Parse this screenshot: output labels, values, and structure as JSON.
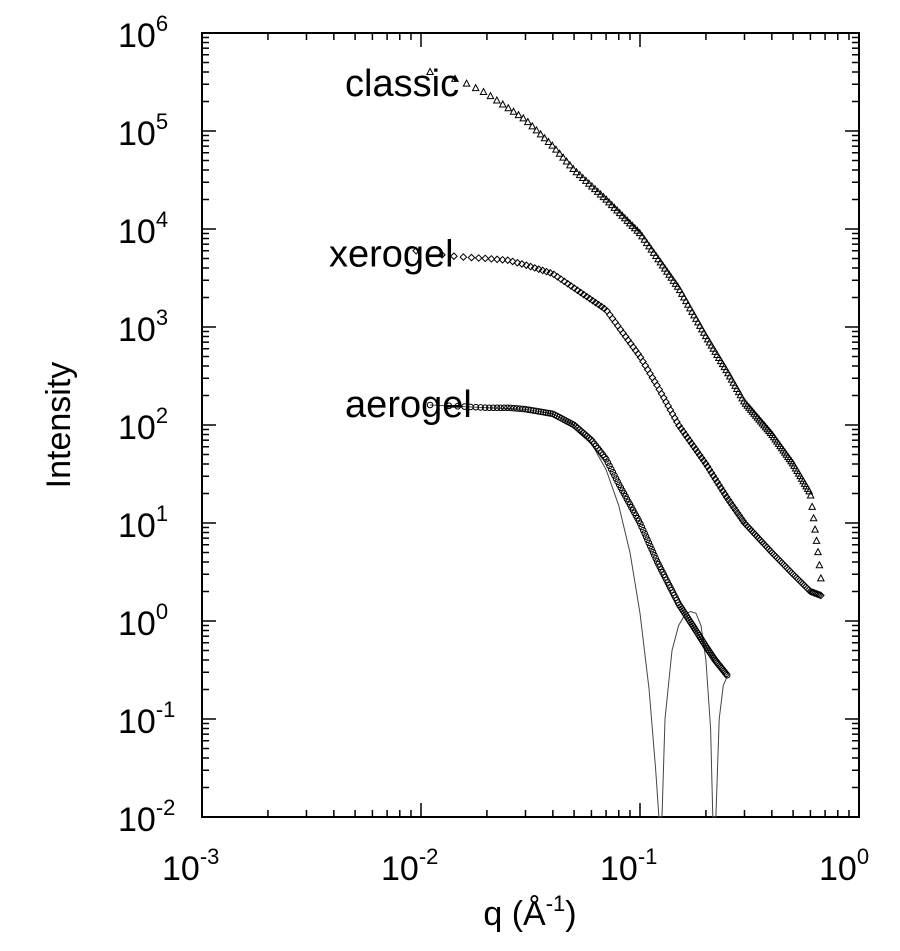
{
  "chart_data": {
    "type": "scatter",
    "x_scale": "log",
    "y_scale": "log",
    "xlim": [
      0.001,
      1
    ],
    "ylim": [
      0.01,
      1000000
    ],
    "xlabel": {
      "base": "q (Å",
      "sup": "-1",
      "tail": ")"
    },
    "ylabel": "Intensity",
    "x_ticks": [
      {
        "value": 0.001,
        "base": "10",
        "exp": "-3"
      },
      {
        "value": 0.01,
        "base": "10",
        "exp": "-2"
      },
      {
        "value": 0.1,
        "base": "10",
        "exp": "-1"
      },
      {
        "value": 1,
        "base": "10",
        "exp": "0"
      }
    ],
    "y_ticks": [
      {
        "value": 0.01,
        "base": "10",
        "exp": "-2"
      },
      {
        "value": 0.1,
        "base": "10",
        "exp": "-1"
      },
      {
        "value": 1,
        "base": "10",
        "exp": "0"
      },
      {
        "value": 10,
        "base": "10",
        "exp": "1"
      },
      {
        "value": 100,
        "base": "10",
        "exp": "2"
      },
      {
        "value": 1000,
        "base": "10",
        "exp": "3"
      },
      {
        "value": 10000,
        "base": "10",
        "exp": "4"
      },
      {
        "value": 100000,
        "base": "10",
        "exp": "5"
      },
      {
        "value": 1000000,
        "base": "10",
        "exp": "6"
      }
    ],
    "grid": false,
    "series": [
      {
        "name": "classic",
        "marker": "triangle",
        "label_at": {
          "x": 0.0045,
          "y": 300000
        },
        "points": [
          [
            0.011,
            400000
          ],
          [
            0.015,
            330000
          ],
          [
            0.02,
            240000
          ],
          [
            0.03,
            130000
          ],
          [
            0.04,
            70000
          ],
          [
            0.05,
            40000
          ],
          [
            0.07,
            20000
          ],
          [
            0.1,
            9000
          ],
          [
            0.15,
            2500
          ],
          [
            0.2,
            800
          ],
          [
            0.25,
            350
          ],
          [
            0.3,
            170
          ],
          [
            0.4,
            80
          ],
          [
            0.5,
            40
          ],
          [
            0.6,
            20
          ],
          [
            0.65,
            5
          ],
          [
            0.68,
            2
          ]
        ]
      },
      {
        "name": "xerogel",
        "marker": "diamond",
        "label_at": {
          "x": 0.0038,
          "y": 5500
        },
        "points": [
          [
            0.0095,
            6000
          ],
          [
            0.012,
            5500
          ],
          [
            0.015,
            5200
          ],
          [
            0.02,
            5000
          ],
          [
            0.025,
            4800
          ],
          [
            0.03,
            4300
          ],
          [
            0.04,
            3500
          ],
          [
            0.05,
            2500
          ],
          [
            0.07,
            1500
          ],
          [
            0.1,
            500
          ],
          [
            0.12,
            250
          ],
          [
            0.15,
            100
          ],
          [
            0.2,
            40
          ],
          [
            0.25,
            18
          ],
          [
            0.3,
            10
          ],
          [
            0.4,
            5
          ],
          [
            0.5,
            3
          ],
          [
            0.6,
            2
          ],
          [
            0.68,
            1.8
          ]
        ]
      },
      {
        "name": "aerogel",
        "marker": "circle",
        "label_at": {
          "x": 0.0045,
          "y": 160
        },
        "points": [
          [
            0.011,
            160
          ],
          [
            0.015,
            155
          ],
          [
            0.02,
            150
          ],
          [
            0.025,
            150
          ],
          [
            0.03,
            145
          ],
          [
            0.04,
            130
          ],
          [
            0.05,
            100
          ],
          [
            0.06,
            70
          ],
          [
            0.07,
            45
          ],
          [
            0.08,
            25
          ],
          [
            0.1,
            10
          ],
          [
            0.12,
            4
          ],
          [
            0.15,
            1.5
          ],
          [
            0.18,
            0.8
          ],
          [
            0.2,
            0.55
          ],
          [
            0.22,
            0.4
          ],
          [
            0.25,
            0.28
          ]
        ]
      }
    ],
    "fit_curve": {
      "points": [
        [
          0.011,
          160
        ],
        [
          0.02,
          150
        ],
        [
          0.03,
          145
        ],
        [
          0.04,
          130
        ],
        [
          0.05,
          100
        ],
        [
          0.06,
          65
        ],
        [
          0.07,
          35
        ],
        [
          0.08,
          15
        ],
        [
          0.09,
          5
        ],
        [
          0.1,
          1.2
        ],
        [
          0.11,
          0.2
        ],
        [
          0.118,
          0.03
        ],
        [
          0.122,
          0.01
        ],
        [
          0.126,
          0.01
        ],
        [
          0.13,
          0.1
        ],
        [
          0.14,
          0.5
        ],
        [
          0.15,
          0.9
        ],
        [
          0.16,
          1.15
        ],
        [
          0.17,
          1.25
        ],
        [
          0.18,
          1.2
        ],
        [
          0.19,
          0.9
        ],
        [
          0.2,
          0.4
        ],
        [
          0.21,
          0.08
        ],
        [
          0.215,
          0.01
        ],
        [
          0.222,
          0.01
        ],
        [
          0.23,
          0.1
        ],
        [
          0.24,
          0.22
        ],
        [
          0.25,
          0.27
        ]
      ]
    }
  }
}
